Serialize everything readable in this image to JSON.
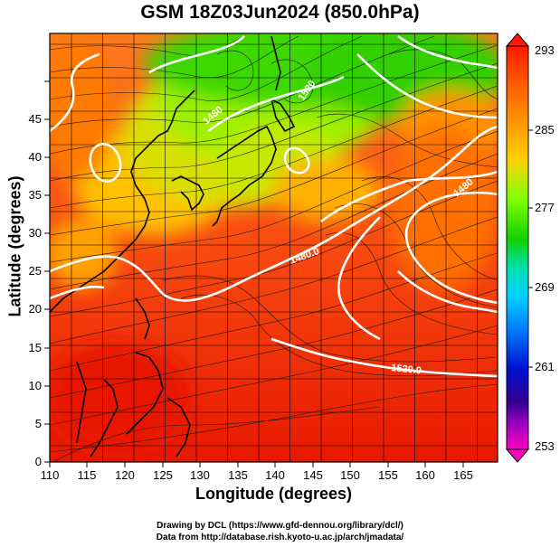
{
  "title": "GSM 18Z03Jun2024 (850.0hPa)",
  "xlabel": "Longitude (degrees)",
  "ylabel": "Latitude  (degrees)",
  "x_ticks": [
    "110",
    "115",
    "120",
    "125",
    "130",
    "135",
    "140",
    "145",
    "150",
    "155",
    "160",
    "165"
  ],
  "y_ticks": [
    "0",
    "5",
    "10",
    "15",
    "20",
    "25",
    "30",
    "35",
    "40",
    "45"
  ],
  "colorbar": {
    "labels": [
      "293",
      "285",
      "277",
      "269",
      "261",
      "253"
    ],
    "colors": [
      "#ff2000",
      "#ff8a00",
      "#ffd000",
      "#80ff00",
      "#20d000",
      "#00e0c0",
      "#0090ff",
      "#0000c0",
      "#600080",
      "#ff00b0"
    ]
  },
  "contour_labels": [
    "1480",
    "1520",
    "1480.0",
    "1520.0",
    "1480",
    "1480"
  ],
  "credits": [
    "Drawing by DCL (https://www.gfd-dennou.org/library/dcl/)",
    "Data from http://database.rish.kyoto-u.ac.jp/arch/jmadata/"
  ]
}
